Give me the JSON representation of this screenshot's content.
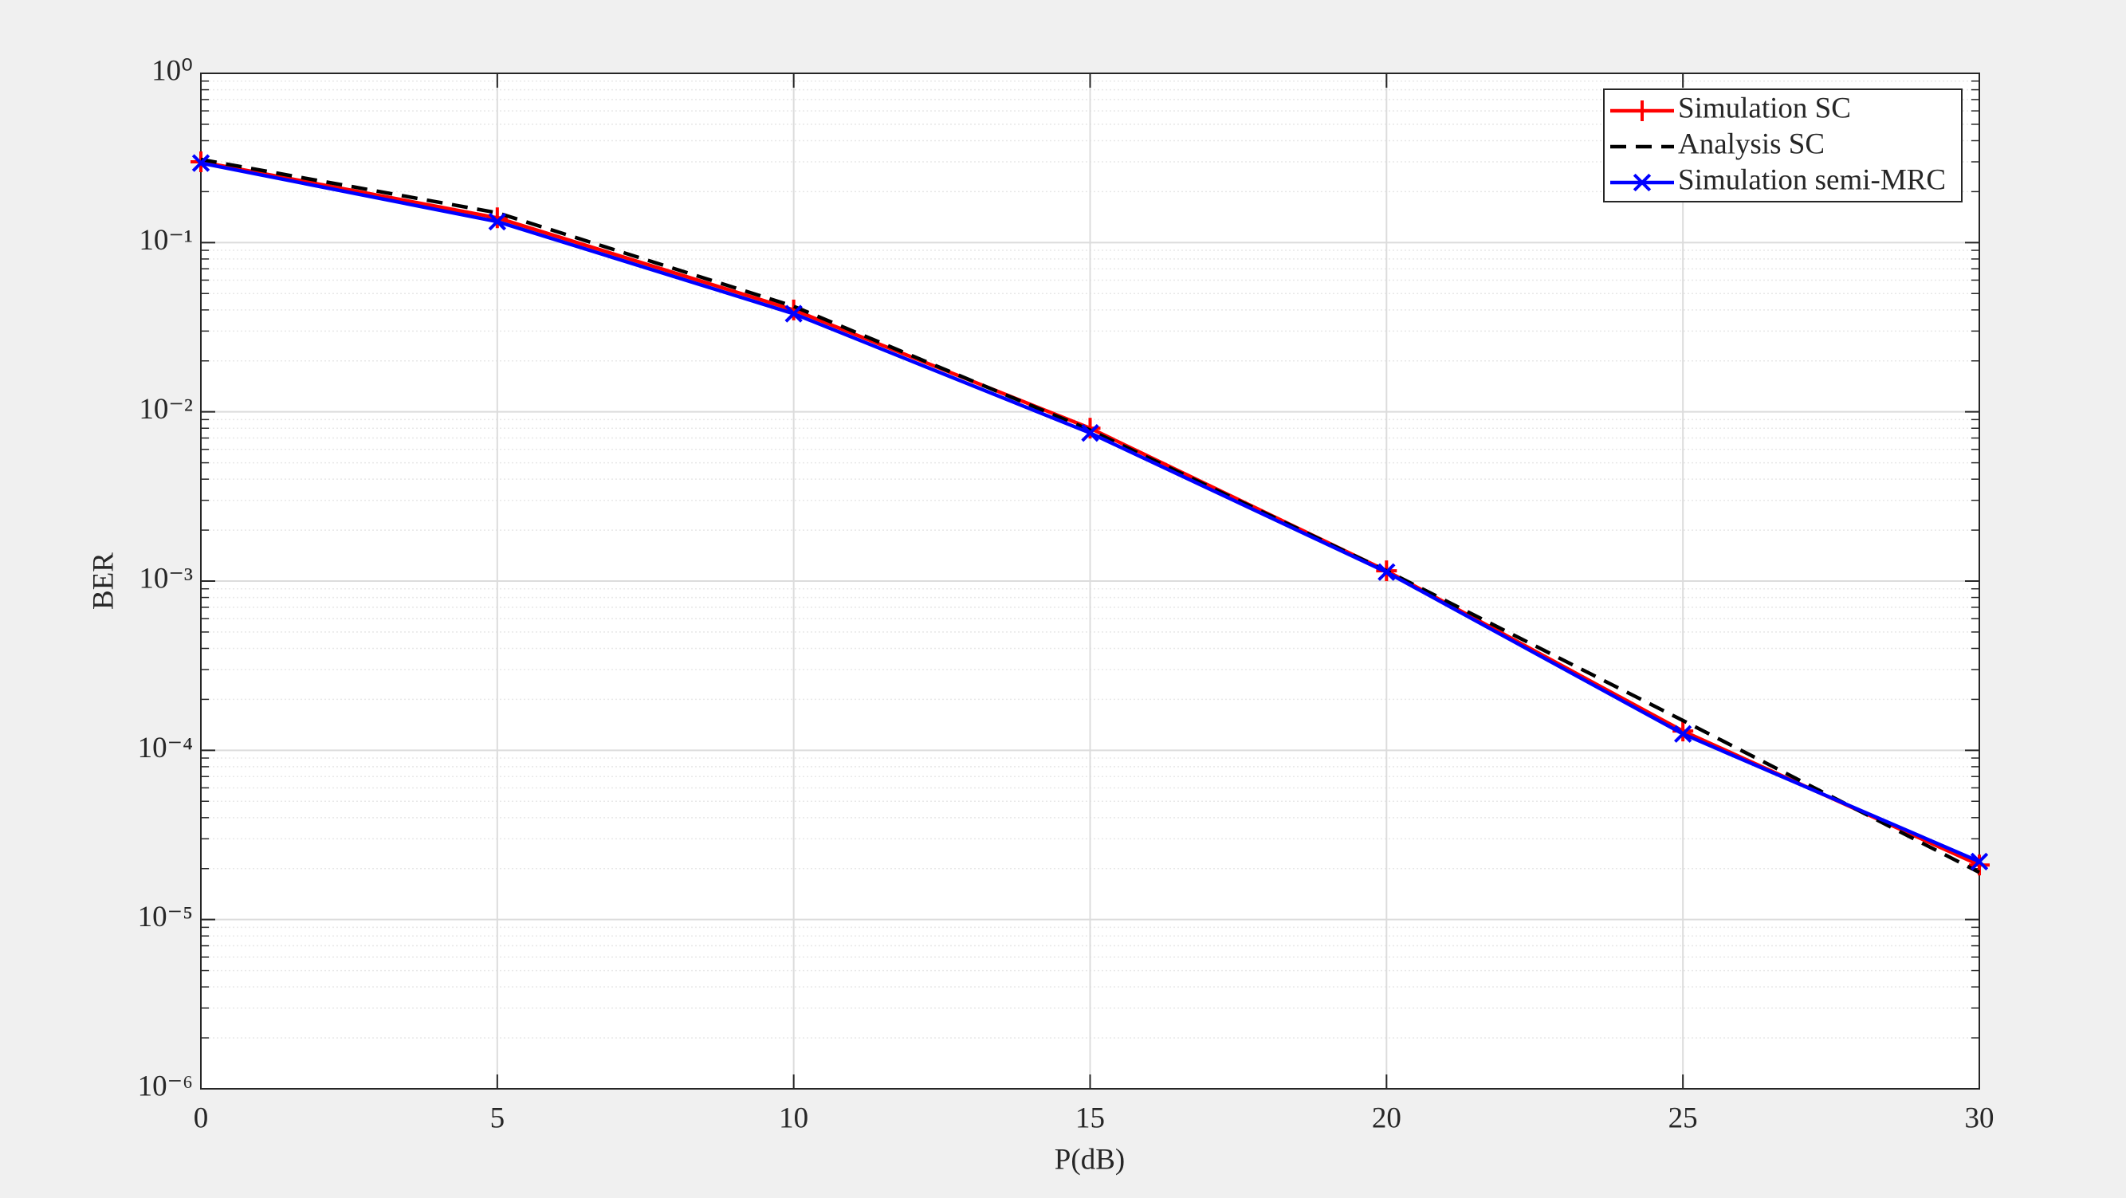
{
  "chart_data": {
    "type": "line",
    "xlabel": "P(dB)",
    "ylabel": "BER",
    "x": [
      0,
      5,
      10,
      15,
      20,
      25,
      30
    ],
    "series": [
      {
        "name": "Simulation SC",
        "color": "#ff0000",
        "marker": "plus",
        "dash": "solid",
        "values": [
          0.3,
          0.14,
          0.04,
          0.008,
          0.00115,
          0.00013,
          2.1e-05
        ]
      },
      {
        "name": "Analysis SC",
        "color": "#000000",
        "marker": "none",
        "dash": "dashed",
        "values": [
          0.31,
          0.15,
          0.042,
          0.0078,
          0.00115,
          0.00015,
          1.9e-05
        ]
      },
      {
        "name": "Simulation semi-MRC",
        "color": "#0000ff",
        "marker": "cross",
        "dash": "solid",
        "values": [
          0.295,
          0.133,
          0.038,
          0.0075,
          0.00113,
          0.000125,
          2.2e-05
        ]
      }
    ],
    "xlim": [
      0,
      30
    ],
    "xticks": [
      0,
      5,
      10,
      15,
      20,
      25,
      30
    ],
    "ylim": [
      1e-06,
      1
    ],
    "ylog": true,
    "yticks": [
      {
        "value": 1e-06,
        "label": "10⁻⁶"
      },
      {
        "value": 1e-05,
        "label": "10⁻⁵"
      },
      {
        "value": 0.0001,
        "label": "10⁻⁴"
      },
      {
        "value": 0.001,
        "label": "10⁻³"
      },
      {
        "value": 0.01,
        "label": "10⁻²"
      },
      {
        "value": 0.1,
        "label": "10⁻¹"
      },
      {
        "value": 1,
        "label": "10⁰"
      }
    ],
    "grid": true,
    "minor_grid": true,
    "legend": "northeast"
  }
}
